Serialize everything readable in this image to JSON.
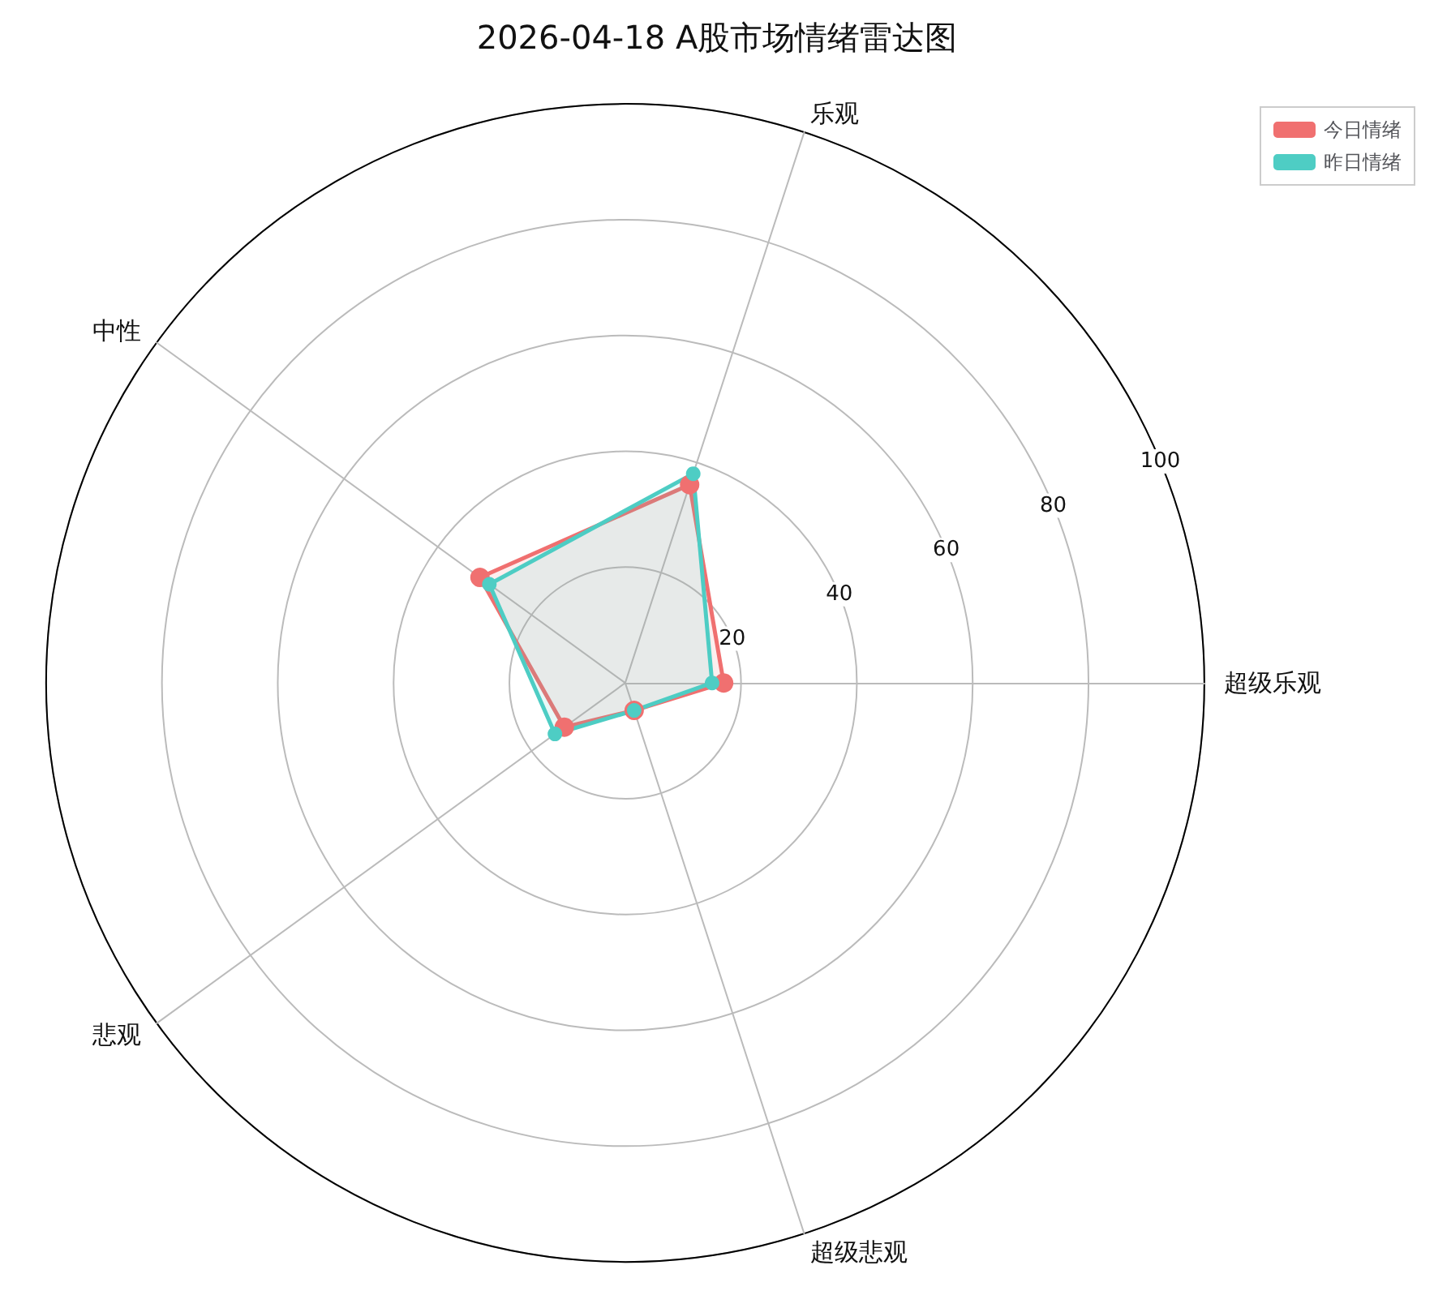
{
  "chart_data": {
    "type": "radar",
    "title": "2026-04-18 A股市场情绪雷达图",
    "categories": [
      "乐观",
      "超级乐观",
      "超级悲观",
      "悲观",
      "中性"
    ],
    "series": [
      {
        "name": "今日情绪",
        "color": "#f07070",
        "values": [
          36,
          17,
          5,
          13,
          31
        ]
      },
      {
        "name": "昨日情绪",
        "color": "#4ecdc4",
        "values": [
          38,
          15,
          5,
          15,
          29
        ]
      }
    ],
    "ylim": [
      0,
      100
    ],
    "yticks": [
      20,
      40,
      60,
      80,
      100
    ],
    "grid": true,
    "legend": "top right",
    "marker": "circle",
    "line_style": "solid"
  }
}
